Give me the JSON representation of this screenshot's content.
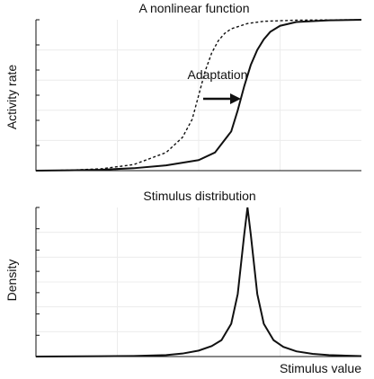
{
  "chart_data": [
    {
      "type": "line",
      "title": "A nonlinear function",
      "xlabel": "",
      "ylabel": "Activity rate",
      "xlim": [
        0,
        10
      ],
      "ylim": [
        0,
        1
      ],
      "grid": true,
      "annotation": "Adaptation",
      "series": [
        {
          "style": "dashed",
          "x": [
            0,
            1,
            2,
            3,
            4,
            4.5,
            4.8,
            5.0,
            5.2,
            5.4,
            5.6,
            5.8,
            6.0,
            6.5,
            7,
            8,
            9,
            10
          ],
          "y": [
            0.0,
            0.003,
            0.012,
            0.04,
            0.12,
            0.22,
            0.34,
            0.5,
            0.66,
            0.78,
            0.86,
            0.91,
            0.94,
            0.975,
            0.99,
            0.997,
            0.999,
            1.0
          ]
        },
        {
          "style": "solid",
          "x": [
            0,
            1,
            2,
            3,
            4,
            5,
            5.5,
            6.0,
            6.2,
            6.4,
            6.6,
            6.8,
            7.0,
            7.2,
            7.5,
            8,
            9,
            10
          ],
          "y": [
            0.0,
            0.002,
            0.006,
            0.016,
            0.035,
            0.07,
            0.12,
            0.26,
            0.4,
            0.56,
            0.7,
            0.8,
            0.87,
            0.92,
            0.96,
            0.985,
            0.996,
            1.0
          ]
        }
      ]
    },
    {
      "type": "line",
      "title": "Stimulus distribution",
      "xlabel": "Stimulus value",
      "ylabel": "Density",
      "xlim": [
        0,
        10
      ],
      "ylim": [
        0,
        1
      ],
      "grid": true,
      "series": [
        {
          "style": "solid",
          "x": [
            0,
            2,
            3,
            4,
            4.5,
            5,
            5.4,
            5.7,
            6.0,
            6.2,
            6.4,
            6.5,
            6.6,
            6.8,
            7.0,
            7.3,
            7.6,
            8,
            8.5,
            9,
            10
          ],
          "y": [
            0.0,
            0.002,
            0.004,
            0.01,
            0.02,
            0.04,
            0.07,
            0.11,
            0.22,
            0.42,
            0.82,
            1.0,
            0.82,
            0.42,
            0.22,
            0.11,
            0.065,
            0.035,
            0.018,
            0.01,
            0.003
          ]
        }
      ]
    }
  ]
}
